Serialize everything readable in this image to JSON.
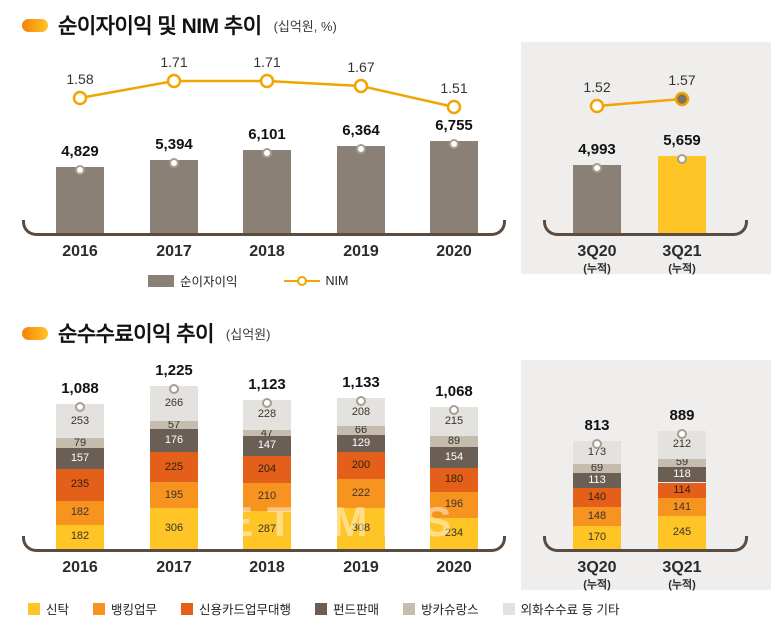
{
  "colors": {
    "panel_bg": "#efeeec",
    "bracket": "#5c4b3f",
    "accent_orange": "#f5820b",
    "accent_yellow": "#ffc425",
    "gray_bar": "#8a8076",
    "nim_line": "#f0a500"
  },
  "watermark": "ETIMES",
  "chart_data": [
    {
      "type": "bar",
      "subtype": "bar-with-line",
      "title": "순이자이익 및 NIM 추이",
      "unit_label": "(십억원, %)",
      "categories": [
        "2016",
        "2017",
        "2018",
        "2019",
        "2020"
      ],
      "bar_series": {
        "name": "순이자이익",
        "color": "#8a8076",
        "values": [
          4829,
          5394,
          6101,
          6364,
          6755
        ]
      },
      "line_series": {
        "name": "NIM",
        "color": "#f0a500",
        "values": [
          1.58,
          1.71,
          1.71,
          1.67,
          1.51
        ]
      },
      "legend": [
        {
          "label": "순이자이익"
        },
        {
          "label": "NIM"
        }
      ],
      "panel": {
        "categories": [
          "3Q20",
          "3Q21"
        ],
        "sub_label": "(누적)",
        "bar_values": [
          4993,
          5659
        ],
        "bar_colors": [
          "#8a8076",
          "#ffc425"
        ],
        "line_values": [
          1.52,
          1.57
        ],
        "last_marker_fill": "#7d7265"
      }
    },
    {
      "type": "bar",
      "subtype": "stacked-bar",
      "title": "순수수료이익 추이",
      "unit_label": "(십억원)",
      "categories": [
        "2016",
        "2017",
        "2018",
        "2019",
        "2020"
      ],
      "totals": [
        1088,
        1225,
        1123,
        1133,
        1068
      ],
      "series": [
        {
          "name": "신탁",
          "color": "#ffc425",
          "label_color": "#3a332b",
          "values": [
            182,
            306,
            287,
            308,
            234
          ]
        },
        {
          "name": "뱅킹업무",
          "color": "#f79420",
          "label_color": "#3a332b",
          "values": [
            182,
            195,
            210,
            222,
            196
          ]
        },
        {
          "name": "신용카드업무대행",
          "color": "#e4601a",
          "label_color": "#33200f",
          "values": [
            235,
            225,
            204,
            200,
            180
          ]
        },
        {
          "name": "펀드판매",
          "color": "#6b5f55",
          "label_color": "#ffffff",
          "values": [
            157,
            176,
            147,
            129,
            154
          ]
        },
        {
          "name": "방카슈랑스",
          "color": "#c6bcae",
          "label_color": "#3a332b",
          "values": [
            79,
            57,
            47,
            66,
            89
          ]
        },
        {
          "name": "외화수수료 등 기타",
          "color": "#e4e2de",
          "label_color": "#3a332b",
          "values": [
            253,
            266,
            228,
            208,
            215
          ]
        }
      ],
      "panel": {
        "categories": [
          "3Q20",
          "3Q21"
        ],
        "sub_label": "(누적)",
        "totals": [
          813,
          889
        ],
        "series_values": [
          [
            170,
            245
          ],
          [
            148,
            141
          ],
          [
            140,
            114
          ],
          [
            113,
            118
          ],
          [
            69,
            59
          ],
          [
            173,
            212
          ]
        ]
      }
    }
  ]
}
